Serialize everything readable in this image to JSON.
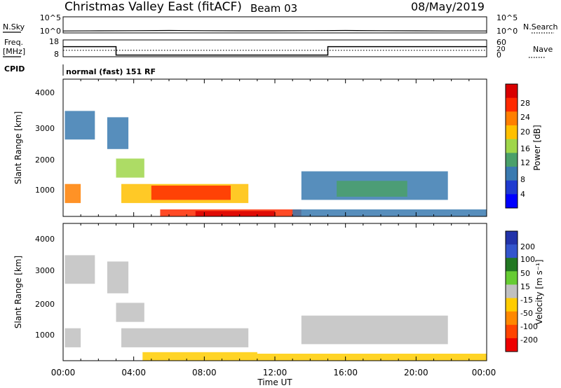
{
  "header": {
    "station": "Christmas Valley East (fitACF)",
    "beam": "Beam 03",
    "date": "08/May/2019"
  },
  "nsky": {
    "left_label": "N.Sky",
    "left_ticks": [
      "10^5",
      "10^0"
    ],
    "right_label": "N.Search",
    "right_ticks": [
      "10^5",
      "10^0"
    ]
  },
  "freq": {
    "left_label_1": "Freq.",
    "left_label_2": "[MHz]",
    "left_ticks": [
      "18",
      "8"
    ],
    "right_label": "Nave",
    "right_ticks": [
      "60",
      "20",
      "0"
    ]
  },
  "cpid": {
    "label": "CPID",
    "value": "normal (fast) 151 RF"
  },
  "power_panel": {
    "ylabel": "Slant Range [km]",
    "yticks": [
      "4000",
      "3000",
      "2000",
      "1000"
    ],
    "colorbar_label": "Power [dB]",
    "colorbar_ticks": [
      "28",
      "24",
      "20",
      "16",
      "12",
      "8",
      "4"
    ]
  },
  "velocity_panel": {
    "ylabel": "Slant Range [km]",
    "yticks": [
      "4000",
      "3000",
      "2000",
      "1000"
    ],
    "colorbar_label": "Velocity [m s⁻¹]",
    "colorbar_ticks": [
      "200",
      "100",
      "50",
      "15",
      "-15",
      "-50",
      "-100",
      "-200"
    ]
  },
  "xaxis": {
    "ticks": [
      "00:00",
      "04:00",
      "08:00",
      "12:00",
      "16:00",
      "20:00",
      "00:00"
    ],
    "label": "Time UT"
  },
  "colors": {
    "power_scale": [
      "#d90000",
      "#ff2a00",
      "#ff7f00",
      "#ffc000",
      "#9fd64a",
      "#4aa06a",
      "#3a7ab0",
      "#1f3bd0",
      "#0000ff"
    ],
    "velocity_scale": [
      "#2233aa",
      "#3355cc",
      "#227722",
      "#66cc33",
      "#c0c0c0",
      "#ffcc00",
      "#ff8800",
      "#ff4400",
      "#ee0000"
    ]
  },
  "chart_data": [
    {
      "type": "line",
      "title": "N.Sky / N.Search",
      "x_range_hours": [
        0,
        24
      ],
      "series": [
        {
          "name": "N.Sky",
          "x": [
            0,
            2,
            4,
            6,
            8,
            10,
            12,
            14,
            16,
            18,
            20,
            22,
            24
          ],
          "y_log10": [
            0.6,
            0.65,
            0.7,
            0.75,
            0.7,
            0.65,
            0.65,
            0.7,
            0.75,
            0.7,
            0.65,
            0.6,
            0.6
          ]
        }
      ]
    },
    {
      "type": "line",
      "title": "Freq. / Nave",
      "x_range_hours": [
        0,
        24
      ],
      "series": [
        {
          "name": "Freq. [MHz]",
          "x": [
            0,
            3,
            3,
            15,
            15,
            24
          ],
          "y": [
            14,
            14,
            9,
            9,
            14,
            14
          ]
        },
        {
          "name": "Nave",
          "x": [
            0,
            24
          ],
          "y": [
            23,
            23
          ]
        }
      ]
    },
    {
      "type": "heatmap",
      "title": "Power [dB]",
      "x_range_hours": [
        0,
        24
      ],
      "y_range_km": [
        180,
        4500
      ],
      "value_range": [
        0,
        32
      ],
      "regions": [
        {
          "t0": 0.1,
          "t1": 1.8,
          "r0": 2600,
          "r1": 3500,
          "value": 8
        },
        {
          "t0": 0.1,
          "t1": 1.0,
          "r0": 600,
          "r1": 1200,
          "value": 22
        },
        {
          "t0": 2.5,
          "t1": 3.7,
          "r0": 2300,
          "r1": 3300,
          "value": 8
        },
        {
          "t0": 3.0,
          "t1": 4.6,
          "r0": 1400,
          "r1": 2000,
          "value": 16
        },
        {
          "t0": 3.3,
          "t1": 10.5,
          "r0": 600,
          "r1": 1200,
          "value": 20
        },
        {
          "t0": 5.0,
          "t1": 9.5,
          "r0": 700,
          "r1": 1150,
          "value": 26
        },
        {
          "t0": 5.5,
          "t1": 13.5,
          "r0": 180,
          "r1": 400,
          "value": 28
        },
        {
          "t0": 7.5,
          "t1": 12.0,
          "r0": 180,
          "r1": 350,
          "value": 30
        },
        {
          "t0": 13.5,
          "t1": 21.8,
          "r0": 700,
          "r1": 1600,
          "value": 10
        },
        {
          "t0": 15.5,
          "t1": 19.5,
          "r0": 800,
          "r1": 1300,
          "value": 14
        },
        {
          "t0": 13.0,
          "t1": 24.0,
          "r0": 180,
          "r1": 400,
          "value": 8
        }
      ]
    },
    {
      "type": "heatmap",
      "title": "Velocity [m s⁻¹]",
      "x_range_hours": [
        0,
        24
      ],
      "y_range_km": [
        180,
        4500
      ],
      "value_range": [
        -200,
        200
      ],
      "regions": [
        {
          "t0": 0.1,
          "t1": 1.8,
          "r0": 2600,
          "r1": 3500,
          "value": 0
        },
        {
          "t0": 0.1,
          "t1": 1.0,
          "r0": 600,
          "r1": 1200,
          "value": 0
        },
        {
          "t0": 2.5,
          "t1": 3.7,
          "r0": 2300,
          "r1": 3300,
          "value": 0
        },
        {
          "t0": 3.0,
          "t1": 4.6,
          "r0": 1400,
          "r1": 2000,
          "value": 0
        },
        {
          "t0": 3.3,
          "t1": 10.5,
          "r0": 600,
          "r1": 1200,
          "value": 0
        },
        {
          "t0": 4.5,
          "t1": 11.0,
          "r0": 180,
          "r1": 450,
          "value": -40
        },
        {
          "t0": 11.0,
          "t1": 24.0,
          "r0": 180,
          "r1": 400,
          "value": -20
        },
        {
          "t0": 13.5,
          "t1": 21.8,
          "r0": 700,
          "r1": 1600,
          "value": 0
        }
      ]
    }
  ]
}
